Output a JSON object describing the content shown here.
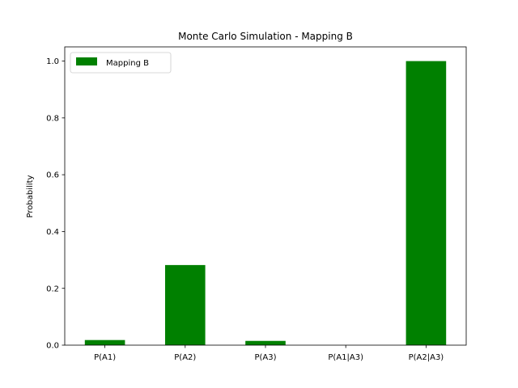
{
  "chart_data": {
    "type": "bar",
    "title": "Monte Carlo Simulation - Mapping B",
    "xlabel": "",
    "ylabel": "Probability",
    "categories": [
      "P(A1)",
      "P(A2)",
      "P(A3)",
      "P(A1|A3)",
      "P(A2|A3)"
    ],
    "series": [
      {
        "name": "Mapping B",
        "values": [
          0.018,
          0.282,
          0.015,
          0.0,
          1.0
        ]
      }
    ],
    "ylim": [
      0,
      1.05
    ],
    "yticks": [
      0.0,
      0.2,
      0.4,
      0.6,
      0.8,
      1.0
    ],
    "ytick_labels": [
      "0.0",
      "0.2",
      "0.4",
      "0.6",
      "0.8",
      "1.0"
    ],
    "grid": false,
    "legend_position": "top-left",
    "colors": {
      "bar": "#008000"
    }
  }
}
